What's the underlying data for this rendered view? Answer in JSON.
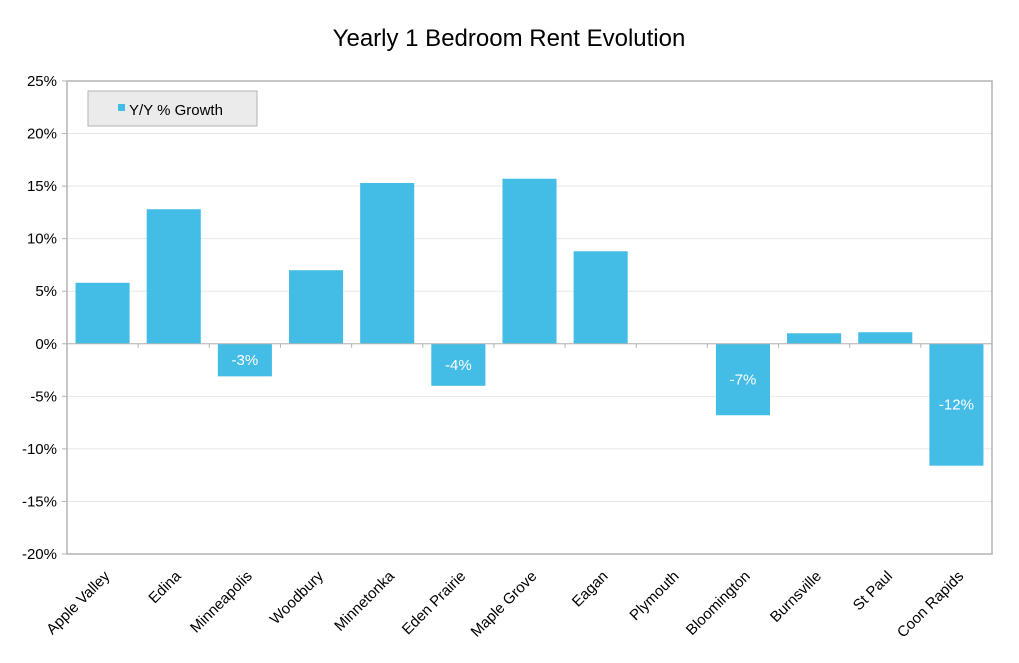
{
  "chart_data": {
    "type": "bar",
    "title": "Yearly 1 Bedroom Rent Evolution",
    "xlabel": "",
    "ylabel": "",
    "categories": [
      "Apple Valley",
      "Edina",
      "Minneapolis",
      "Woodbury",
      "Minnetonka",
      "Eden Prairie",
      "Maple Grove",
      "Eagan",
      "Plymouth",
      "Bloomington",
      "Burnsville",
      "St Paul",
      "Coon Rapids"
    ],
    "series": [
      {
        "name": "Y/Y % Growth",
        "values": [
          5.8,
          12.8,
          -3.1,
          7.0,
          15.3,
          -4.0,
          15.7,
          8.8,
          0,
          -6.8,
          1.0,
          1.1,
          -11.6
        ]
      }
    ],
    "data_labels": [
      "",
      "",
      "-3%",
      "",
      "",
      "-4%",
      "",
      "",
      "",
      "-7%",
      "",
      "",
      "-12%"
    ],
    "ylim": [
      -20,
      25
    ],
    "y_ticks": [
      25,
      20,
      15,
      10,
      5,
      0,
      -5,
      -10,
      -15,
      -20
    ],
    "y_tick_labels": [
      "25%",
      "20%",
      "15%",
      "10%",
      "5%",
      "0%",
      "-5%",
      "-10%",
      "-15%",
      "-20%"
    ],
    "grid": true,
    "legend_position": "top-left",
    "colors": {
      "bar": "#44bde6",
      "grid": "#e8e8e8",
      "axis": "#b3b3b3",
      "legend_bg": "#ebebeb",
      "legend_border": "#b3b3b3"
    }
  }
}
